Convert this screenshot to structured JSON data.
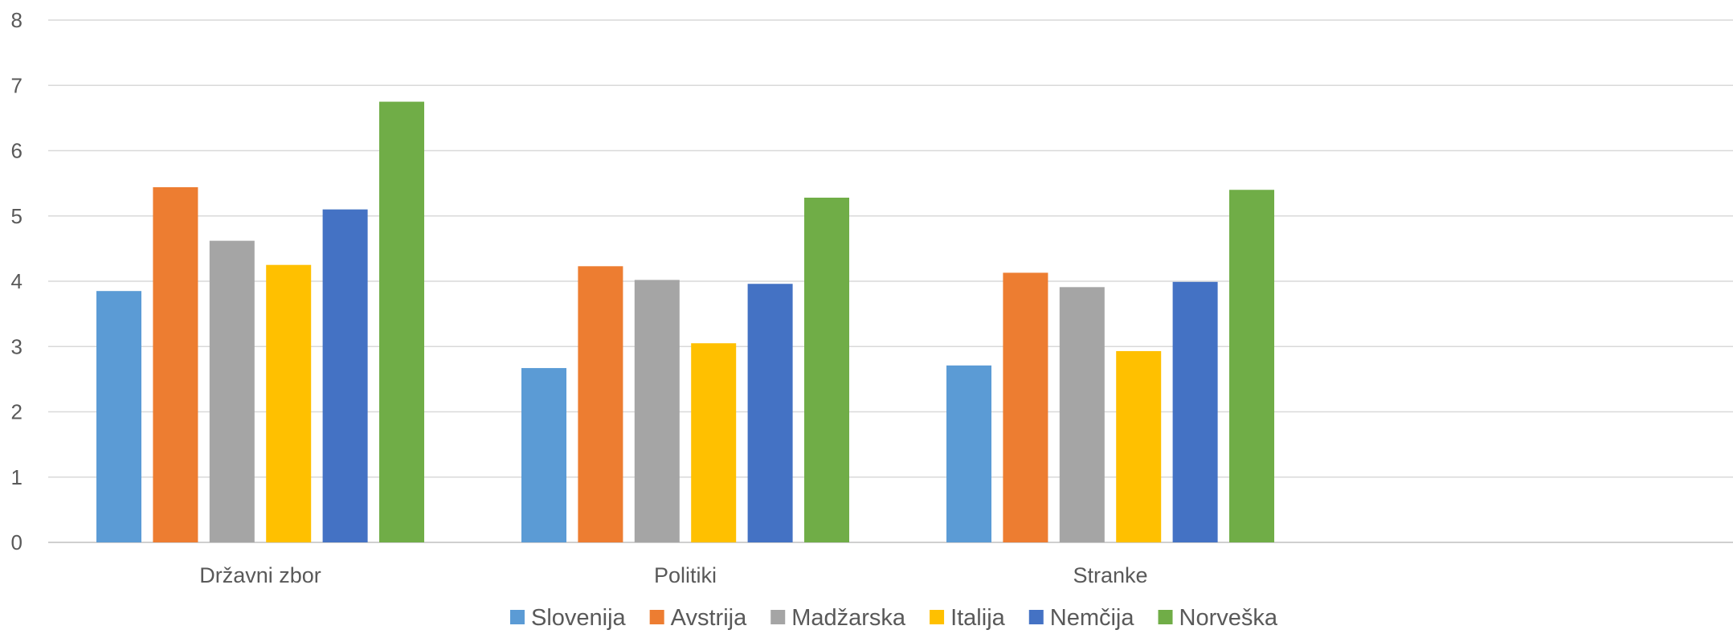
{
  "chart_data": {
    "type": "bar",
    "title": "",
    "xlabel": "",
    "ylabel": "",
    "ylim": [
      0,
      8
    ],
    "yticks": [
      0,
      1,
      2,
      3,
      4,
      5,
      6,
      7,
      8
    ],
    "grid": true,
    "legend_position": "bottom",
    "categories": [
      "Državni zbor",
      "Politiki",
      "Stranke"
    ],
    "series": [
      {
        "name": "Slovenija",
        "color": "#5B9BD5",
        "values": [
          3.85,
          2.67,
          2.71
        ]
      },
      {
        "name": "Avstrija",
        "color": "#ED7D31",
        "values": [
          5.44,
          4.23,
          4.13
        ]
      },
      {
        "name": "Madžarska",
        "color": "#A5A5A5",
        "values": [
          4.62,
          4.02,
          3.91
        ]
      },
      {
        "name": "Italija",
        "color": "#FFC000",
        "values": [
          4.25,
          3.05,
          2.93
        ]
      },
      {
        "name": "Nemčija",
        "color": "#4472C4",
        "values": [
          5.1,
          3.96,
          3.99
        ]
      },
      {
        "name": "Norveška",
        "color": "#70AD47",
        "values": [
          6.75,
          5.28,
          5.4
        ]
      }
    ]
  }
}
